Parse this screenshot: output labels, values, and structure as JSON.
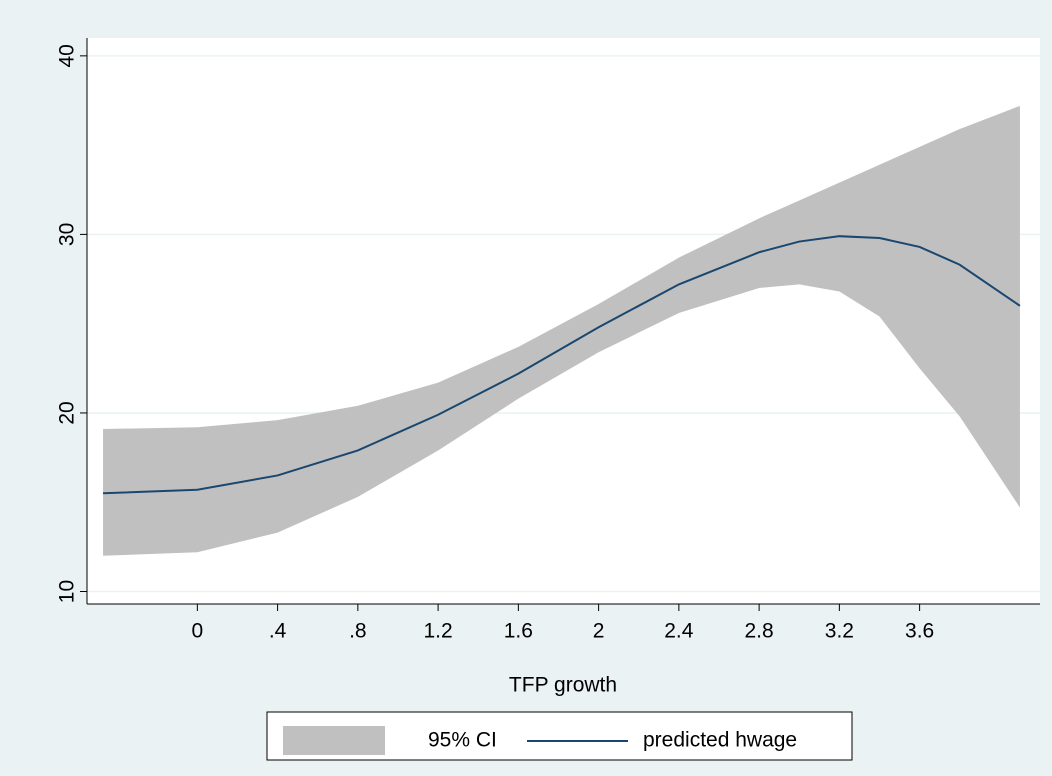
{
  "chart_data": {
    "type": "line",
    "x_label": "TFP growth",
    "xlim": [
      -0.55,
      4.2
    ],
    "ylim": [
      9.3,
      41
    ],
    "xticks": [
      0,
      {
        "value": 0.4,
        "label": ".4"
      },
      {
        "value": 0.8,
        "label": ".8"
      },
      1.2,
      1.6,
      2,
      2.4,
      2.8,
      3.2,
      3.6
    ],
    "yticks": [
      10,
      20,
      30,
      40
    ],
    "grid": true,
    "legend": "bottom",
    "x": [
      -0.47,
      0,
      0.4,
      0.8,
      1.2,
      1.6,
      2,
      2.4,
      2.8,
      3.0,
      3.2,
      3.4,
      3.6,
      3.8,
      4.1
    ],
    "series": [
      {
        "name": "95% CI",
        "type": "area",
        "color": "#c0c0c0",
        "lower": [
          12.0,
          12.2,
          13.3,
          15.3,
          17.9,
          20.8,
          23.4,
          25.6,
          27.0,
          27.2,
          26.8,
          25.4,
          22.5,
          19.8,
          14.7
        ],
        "upper": [
          19.1,
          19.2,
          19.6,
          20.4,
          21.7,
          23.7,
          26.1,
          28.7,
          30.9,
          31.9,
          32.9,
          33.9,
          34.9,
          35.9,
          37.2
        ]
      },
      {
        "name": "predicted hwage",
        "type": "line",
        "color": "#1a476f",
        "values": [
          15.5,
          15.7,
          16.5,
          17.9,
          19.9,
          22.2,
          24.8,
          27.2,
          29.0,
          29.6,
          29.9,
          29.8,
          29.3,
          28.3,
          26.0
        ]
      }
    ]
  }
}
